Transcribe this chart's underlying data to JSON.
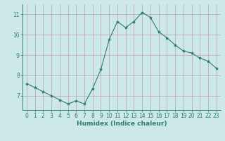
{
  "x": [
    0,
    1,
    2,
    3,
    4,
    5,
    6,
    7,
    8,
    9,
    10,
    11,
    12,
    13,
    14,
    15,
    16,
    17,
    18,
    19,
    20,
    21,
    22,
    23
  ],
  "y": [
    7.6,
    7.4,
    7.2,
    7.0,
    6.8,
    6.6,
    6.75,
    6.6,
    7.35,
    8.3,
    9.75,
    10.65,
    10.35,
    10.65,
    11.1,
    10.85,
    10.15,
    9.85,
    9.5,
    9.2,
    9.1,
    8.85,
    8.7,
    8.35
  ],
  "line_color": "#2e7d6e",
  "marker": "*",
  "marker_size": 3,
  "bg_color": "#cce8e8",
  "grid_color": "#c0a0a0",
  "xlabel": "Humidex (Indice chaleur)",
  "xlim": [
    -0.5,
    23.5
  ],
  "ylim": [
    6.3,
    11.5
  ],
  "yticks": [
    7,
    8,
    9,
    10,
    11
  ],
  "xticks": [
    0,
    1,
    2,
    3,
    4,
    5,
    6,
    7,
    8,
    9,
    10,
    11,
    12,
    13,
    14,
    15,
    16,
    17,
    18,
    19,
    20,
    21,
    22,
    23
  ],
  "tick_color": "#2e7d6e",
  "axis_color": "#2e7d6e",
  "label_fontsize": 6.5,
  "tick_fontsize": 5.5
}
